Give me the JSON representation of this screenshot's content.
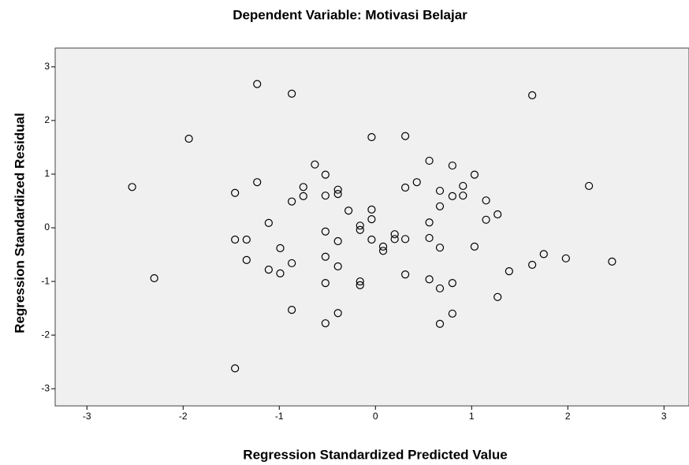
{
  "chart_data": {
    "type": "scatter",
    "title": "Dependent Variable: Motivasi Belajar",
    "x_label": "Regression Standardized Predicted Value",
    "y_label": "Regression Standardized Residual",
    "xlim": [
      -3.33,
      3.26
    ],
    "ylim": [
      -3.32,
      3.35
    ],
    "xticks": [
      -3,
      -2,
      -1,
      0,
      1,
      2,
      3
    ],
    "yticks": [
      -3,
      -2,
      -1,
      0,
      1,
      2,
      3
    ],
    "color": "#000000",
    "background": "#f0f0f0",
    "x": [
      -2.53,
      -2.3,
      -1.94,
      -1.23,
      -0.87,
      -1.46,
      -1.23,
      -1.46,
      -1.34,
      -1.34,
      -1.11,
      -1.11,
      -0.99,
      -0.99,
      -0.87,
      -0.87,
      -0.87,
      -0.75,
      -0.75,
      -0.63,
      -0.52,
      -0.52,
      -0.52,
      -0.52,
      -0.52,
      -0.52,
      -0.39,
      -0.39,
      -0.39,
      -0.39,
      -0.39,
      -0.28,
      -0.16,
      -0.16,
      -0.16,
      -0.16,
      -0.04,
      -0.04,
      -0.04,
      -0.04,
      0.08,
      0.08,
      0.2,
      0.2,
      0.31,
      0.31,
      0.31,
      0.31,
      0.43,
      0.56,
      0.56,
      0.56,
      0.56,
      0.67,
      0.67,
      0.67,
      0.67,
      0.67,
      0.8,
      0.8,
      0.8,
      0.8,
      0.91,
      0.91,
      1.03,
      1.03,
      1.15,
      1.15,
      1.27,
      1.27,
      1.39,
      1.63,
      1.63,
      1.75,
      1.98,
      2.22,
      2.46,
      -1.46
    ],
    "values": [
      0.76,
      -0.94,
      1.66,
      2.68,
      2.5,
      0.65,
      0.85,
      -0.22,
      -0.22,
      -0.6,
      0.09,
      -0.78,
      -0.38,
      -0.85,
      0.49,
      -0.66,
      -1.53,
      0.76,
      0.59,
      1.18,
      0.99,
      0.6,
      -0.07,
      -0.54,
      -1.03,
      -1.78,
      0.71,
      0.63,
      -0.25,
      -0.72,
      -1.59,
      0.32,
      0.04,
      -0.04,
      -1.0,
      -1.07,
      1.69,
      0.34,
      0.16,
      -0.22,
      -0.35,
      -0.43,
      -0.12,
      -0.21,
      1.71,
      0.75,
      -0.21,
      -0.87,
      0.85,
      1.25,
      0.1,
      -0.19,
      -0.96,
      0.69,
      0.4,
      -0.37,
      -1.13,
      -1.79,
      1.16,
      0.59,
      -1.03,
      -1.6,
      0.78,
      0.6,
      0.99,
      -0.35,
      0.51,
      0.15,
      0.25,
      -1.29,
      -0.81,
      2.47,
      -0.69,
      -0.49,
      -0.57,
      0.78,
      -0.63,
      -2.62
    ]
  }
}
